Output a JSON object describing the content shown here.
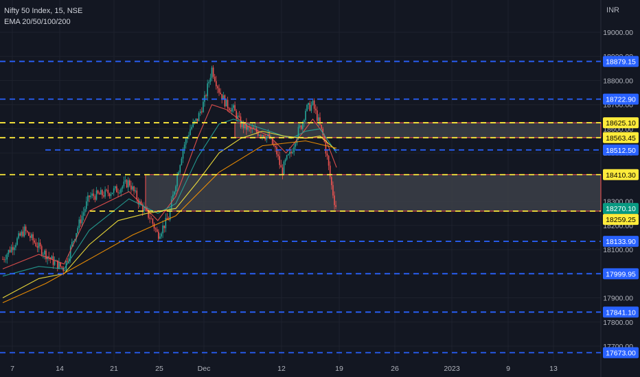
{
  "header": {
    "symbol_line": "Nifty 50 Index, 15, NSE",
    "indicator_line": "EMA 20/50/100/200"
  },
  "currency": "INR",
  "colors": {
    "background": "#131722",
    "grid": "#1e222d",
    "axis_text": "#b2b5be",
    "candle_up": "#26a69a",
    "candle_down": "#ef5350",
    "ema20": "#ef5350",
    "ema50": "#26a69a",
    "ema100": "#ffeb3b",
    "ema200": "#ff9800",
    "blue_level": "#2962ff",
    "yellow_level": "#ffeb3b",
    "zone_fill": "#3c3f48",
    "zone_border": "#ff5252",
    "last_price": "#089981"
  },
  "chart_data": {
    "type": "candlestick",
    "title": "Nifty 50 Index, 15, NSE",
    "indicator": "EMA 20/50/100/200",
    "y_ticks": [
      "19000.00",
      "18900.00",
      "18800.00",
      "18700.00",
      "18600.00",
      "18500.00",
      "18400.00",
      "18300.00",
      "18200.00",
      "18100.00",
      "18000.00",
      "17900.00",
      "17800.00",
      "17700.00"
    ],
    "x_ticks": [
      "7",
      "14",
      "21",
      "25",
      "Dec",
      "12",
      "19",
      "26",
      "2023",
      "9",
      "13"
    ],
    "ylim": [
      17660,
      19105
    ],
    "horizontal_levels": [
      {
        "value": 18879.15,
        "label": "18879.15",
        "style": "blue",
        "from": "start"
      },
      {
        "value": 18722.9,
        "label": "18722.90",
        "style": "blue",
        "from": "start"
      },
      {
        "value": 18625.1,
        "label": "18625.10",
        "style": "yellow",
        "from": "start"
      },
      {
        "value": 18563.45,
        "label": "18563.45",
        "style": "yellow",
        "from": "start"
      },
      {
        "value": 18512.5,
        "label": "18512.50",
        "style": "blue",
        "from": "10"
      },
      {
        "value": 18410.3,
        "label": "18410.30",
        "style": "yellow",
        "from": "start"
      },
      {
        "value": 18259.25,
        "label": "18259.25",
        "style": "yellow",
        "from": "17"
      },
      {
        "value": 18133.9,
        "label": "18133.90",
        "style": "blue",
        "from": "18"
      },
      {
        "value": 17999.95,
        "label": "17999.95",
        "style": "blue",
        "from": "start"
      },
      {
        "value": 17841.1,
        "label": "17841.10",
        "style": "blue",
        "from": "start"
      },
      {
        "value": 17673.0,
        "label": "17673.00",
        "style": "blue",
        "from": "start"
      }
    ],
    "zones": [
      {
        "from": "Dec 2",
        "low": 18563.45,
        "high": 18625.1
      },
      {
        "from": "Nov 24",
        "low": 18259.25,
        "high": 18410.3
      }
    ],
    "last_price": {
      "value": 18270.1,
      "label": "18270.10"
    },
    "price_path": [
      {
        "t": 0,
        "p": 18060
      },
      {
        "t": 3,
        "p": 18180
      },
      {
        "t": 5,
        "p": 18110
      },
      {
        "t": 7,
        "p": 18050
      },
      {
        "t": 8.5,
        "p": 18020
      },
      {
        "t": 10,
        "p": 18160
      },
      {
        "t": 12,
        "p": 18320
      },
      {
        "t": 14,
        "p": 18330
      },
      {
        "t": 16,
        "p": 18350
      },
      {
        "t": 17.5,
        "p": 18380
      },
      {
        "t": 19,
        "p": 18290
      },
      {
        "t": 20.5,
        "p": 18230
      },
      {
        "t": 21.5,
        "p": 18160
      },
      {
        "t": 23,
        "p": 18230
      },
      {
        "t": 24,
        "p": 18380
      },
      {
        "t": 25,
        "p": 18520
      },
      {
        "t": 26,
        "p": 18600
      },
      {
        "t": 27,
        "p": 18640
      },
      {
        "t": 28,
        "p": 18720
      },
      {
        "t": 29,
        "p": 18850
      },
      {
        "t": 30,
        "p": 18760
      },
      {
        "t": 31,
        "p": 18700
      },
      {
        "t": 32,
        "p": 18680
      },
      {
        "t": 33,
        "p": 18620
      },
      {
        "t": 34,
        "p": 18600
      },
      {
        "t": 36,
        "p": 18580
      },
      {
        "t": 37,
        "p": 18560
      },
      {
        "t": 38,
        "p": 18500
      },
      {
        "t": 38.7,
        "p": 18420
      },
      {
        "t": 39.3,
        "p": 18470
      },
      {
        "t": 40,
        "p": 18500
      },
      {
        "t": 40.8,
        "p": 18580
      },
      {
        "t": 41.5,
        "p": 18620
      },
      {
        "t": 42,
        "p": 18680
      },
      {
        "t": 43,
        "p": 18700
      },
      {
        "t": 43.7,
        "p": 18640
      },
      {
        "t": 44.5,
        "p": 18560
      },
      {
        "t": 45,
        "p": 18480
      },
      {
        "t": 45.5,
        "p": 18380
      },
      {
        "t": 46,
        "p": 18300
      },
      {
        "t": 46.3,
        "p": 18270
      }
    ],
    "emas": [
      {
        "name": "EMA 20",
        "color": "#ef5350",
        "points": [
          {
            "t": 0,
            "p": 18020
          },
          {
            "t": 5,
            "p": 18080
          },
          {
            "t": 8.5,
            "p": 18040
          },
          {
            "t": 12,
            "p": 18260
          },
          {
            "t": 17.5,
            "p": 18340
          },
          {
            "t": 21.5,
            "p": 18220
          },
          {
            "t": 24,
            "p": 18320
          },
          {
            "t": 27,
            "p": 18560
          },
          {
            "t": 29,
            "p": 18700
          },
          {
            "t": 31,
            "p": 18680
          },
          {
            "t": 34,
            "p": 18610
          },
          {
            "t": 37,
            "p": 18570
          },
          {
            "t": 39.3,
            "p": 18500
          },
          {
            "t": 41.5,
            "p": 18580
          },
          {
            "t": 43,
            "p": 18640
          },
          {
            "t": 44.5,
            "p": 18580
          },
          {
            "t": 46.3,
            "p": 18440
          }
        ]
      },
      {
        "name": "EMA 50",
        "color": "#26a69a",
        "points": [
          {
            "t": 0,
            "p": 17990
          },
          {
            "t": 5,
            "p": 18030
          },
          {
            "t": 8.5,
            "p": 18020
          },
          {
            "t": 12,
            "p": 18180
          },
          {
            "t": 17.5,
            "p": 18310
          },
          {
            "t": 21.5,
            "p": 18250
          },
          {
            "t": 24,
            "p": 18290
          },
          {
            "t": 27,
            "p": 18480
          },
          {
            "t": 30,
            "p": 18620
          },
          {
            "t": 32,
            "p": 18640
          },
          {
            "t": 35,
            "p": 18610
          },
          {
            "t": 38,
            "p": 18580
          },
          {
            "t": 40,
            "p": 18560
          },
          {
            "t": 42,
            "p": 18590
          },
          {
            "t": 44,
            "p": 18600
          },
          {
            "t": 46.3,
            "p": 18500
          }
        ]
      },
      {
        "name": "EMA 100",
        "color": "#ffeb3b",
        "points": [
          {
            "t": 0,
            "p": 17900
          },
          {
            "t": 5,
            "p": 17980
          },
          {
            "t": 8.5,
            "p": 18000
          },
          {
            "t": 12,
            "p": 18120
          },
          {
            "t": 16,
            "p": 18220
          },
          {
            "t": 20,
            "p": 18250
          },
          {
            "t": 24,
            "p": 18270
          },
          {
            "t": 27,
            "p": 18380
          },
          {
            "t": 30,
            "p": 18500
          },
          {
            "t": 33,
            "p": 18560
          },
          {
            "t": 36,
            "p": 18590
          },
          {
            "t": 39,
            "p": 18570
          },
          {
            "t": 42,
            "p": 18560
          },
          {
            "t": 44,
            "p": 18570
          },
          {
            "t": 46.3,
            "p": 18510
          }
        ]
      },
      {
        "name": "EMA 200",
        "color": "#ff9800",
        "points": [
          {
            "t": 0,
            "p": 17880
          },
          {
            "t": 6,
            "p": 17960
          },
          {
            "t": 12,
            "p": 18060
          },
          {
            "t": 18,
            "p": 18160
          },
          {
            "t": 24,
            "p": 18240
          },
          {
            "t": 30,
            "p": 18420
          },
          {
            "t": 36,
            "p": 18530
          },
          {
            "t": 42,
            "p": 18550
          },
          {
            "t": 46.3,
            "p": 18520
          }
        ]
      }
    ]
  }
}
